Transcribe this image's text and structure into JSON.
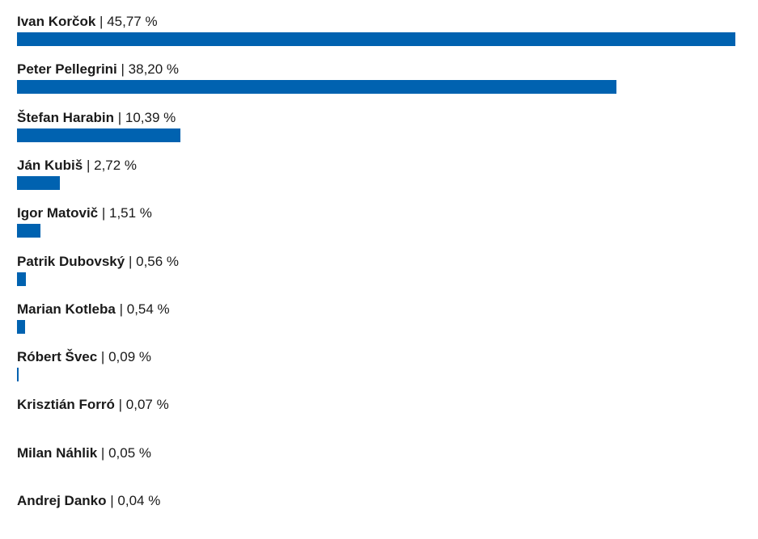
{
  "colors": {
    "bar": "#0062b0",
    "text": "#1a1a1a"
  },
  "chart_data": {
    "type": "bar",
    "orientation": "horizontal",
    "title": "",
    "xlabel": "",
    "ylabel": "",
    "xlim": [
      0,
      45.77
    ],
    "grid": false,
    "legend": "none",
    "categories": [
      "Ivan Korčok",
      "Peter Pellegrini",
      "Štefan Harabin",
      "Ján Kubiš",
      "Igor Matovič",
      "Patrik Dubovský",
      "Marian Kotleba",
      "Róbert Švec",
      "Krisztián Forró",
      "Milan Náhlik",
      "Andrej Danko"
    ],
    "values": [
      45.77,
      38.2,
      10.39,
      2.72,
      1.51,
      0.56,
      0.54,
      0.09,
      0.07,
      0.05,
      0.04
    ],
    "value_labels": [
      "45,77 %",
      "38,20 %",
      "10,39 %",
      "2,72 %",
      "1,51 %",
      "0,56 %",
      "0,54 %",
      "0,09 %",
      "0,07 %",
      "0,05 %",
      "0,04 %"
    ]
  }
}
